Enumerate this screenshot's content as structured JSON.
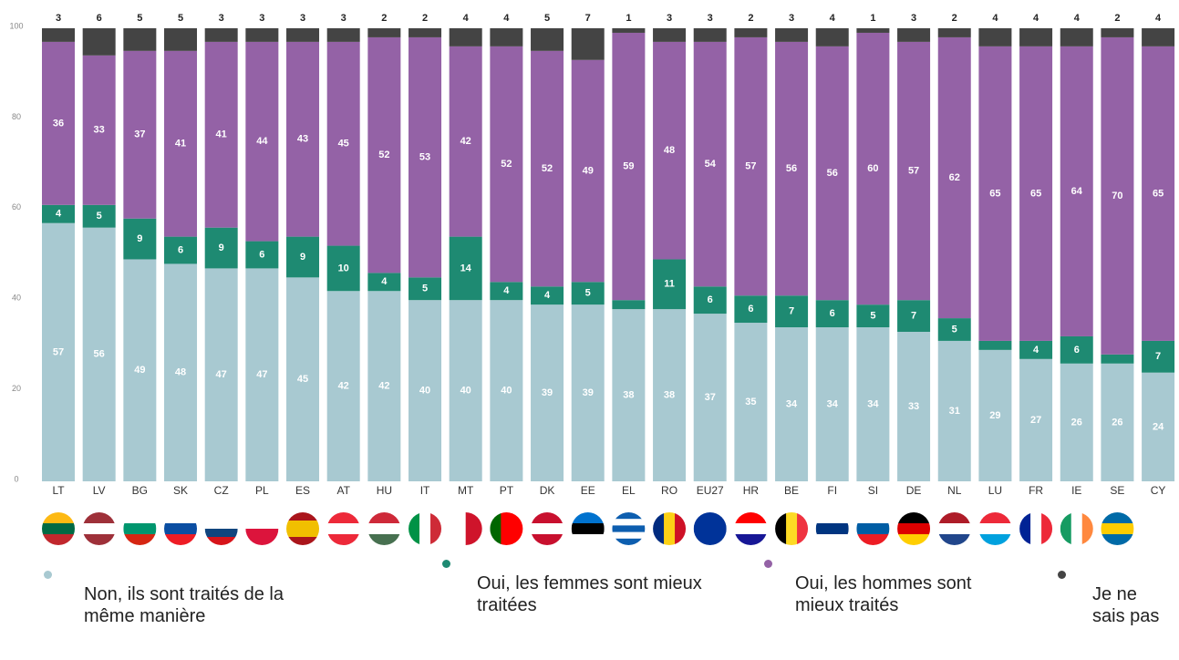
{
  "chart_data": {
    "type": "stacked_bar",
    "categories": [
      "LT",
      "LV",
      "BG",
      "SK",
      "CZ",
      "PL",
      "ES",
      "AT",
      "HU",
      "IT",
      "MT",
      "PT",
      "DK",
      "EE",
      "EL",
      "RO",
      "EU27",
      "HR",
      "BE",
      "FI",
      "SI",
      "DE",
      "NL",
      "LU",
      "FR",
      "IE",
      "SE",
      "CY"
    ],
    "series": [
      {
        "name": "Non, ils sont traités de la même manière",
        "color": "#a8c9d1",
        "values": [
          57,
          56,
          49,
          48,
          47,
          47,
          45,
          42,
          42,
          40,
          40,
          40,
          39,
          39,
          38,
          38,
          37,
          35,
          34,
          34,
          34,
          33,
          31,
          29,
          27,
          26,
          26,
          24
        ]
      },
      {
        "name": "Oui, les femmes sont mieux traitées",
        "color": "#1e8a72",
        "values": [
          4,
          5,
          9,
          6,
          9,
          6,
          9,
          10,
          4,
          5,
          14,
          4,
          4,
          5,
          2,
          11,
          6,
          6,
          7,
          6,
          5,
          7,
          5,
          2,
          4,
          6,
          2,
          7
        ],
        "value_labels": [
          "4",
          "5",
          "9",
          "6",
          "9",
          "6",
          "9",
          "10",
          "4",
          "5",
          "14",
          "4",
          "4",
          "5",
          null,
          "11",
          "6",
          "6",
          "7",
          "6",
          "5",
          "7",
          "5",
          null,
          "4",
          "6",
          null,
          "7"
        ]
      },
      {
        "name": "Oui, les hommes sont mieux traités",
        "color": "#9462a6",
        "values": [
          36,
          33,
          37,
          41,
          41,
          44,
          43,
          45,
          52,
          53,
          42,
          52,
          52,
          49,
          59,
          48,
          54,
          57,
          56,
          56,
          60,
          57,
          62,
          65,
          65,
          64,
          70,
          65
        ]
      },
      {
        "name": "Je ne sais pas",
        "color": "#444444",
        "values": [
          3,
          6,
          5,
          5,
          3,
          3,
          3,
          3,
          2,
          2,
          4,
          4,
          5,
          7,
          1,
          3,
          3,
          2,
          3,
          4,
          1,
          3,
          2,
          4,
          4,
          4,
          2,
          4
        ]
      }
    ],
    "ylim": [
      0,
      100
    ],
    "yticks": [
      0,
      20,
      40,
      60,
      80,
      100
    ]
  }
}
